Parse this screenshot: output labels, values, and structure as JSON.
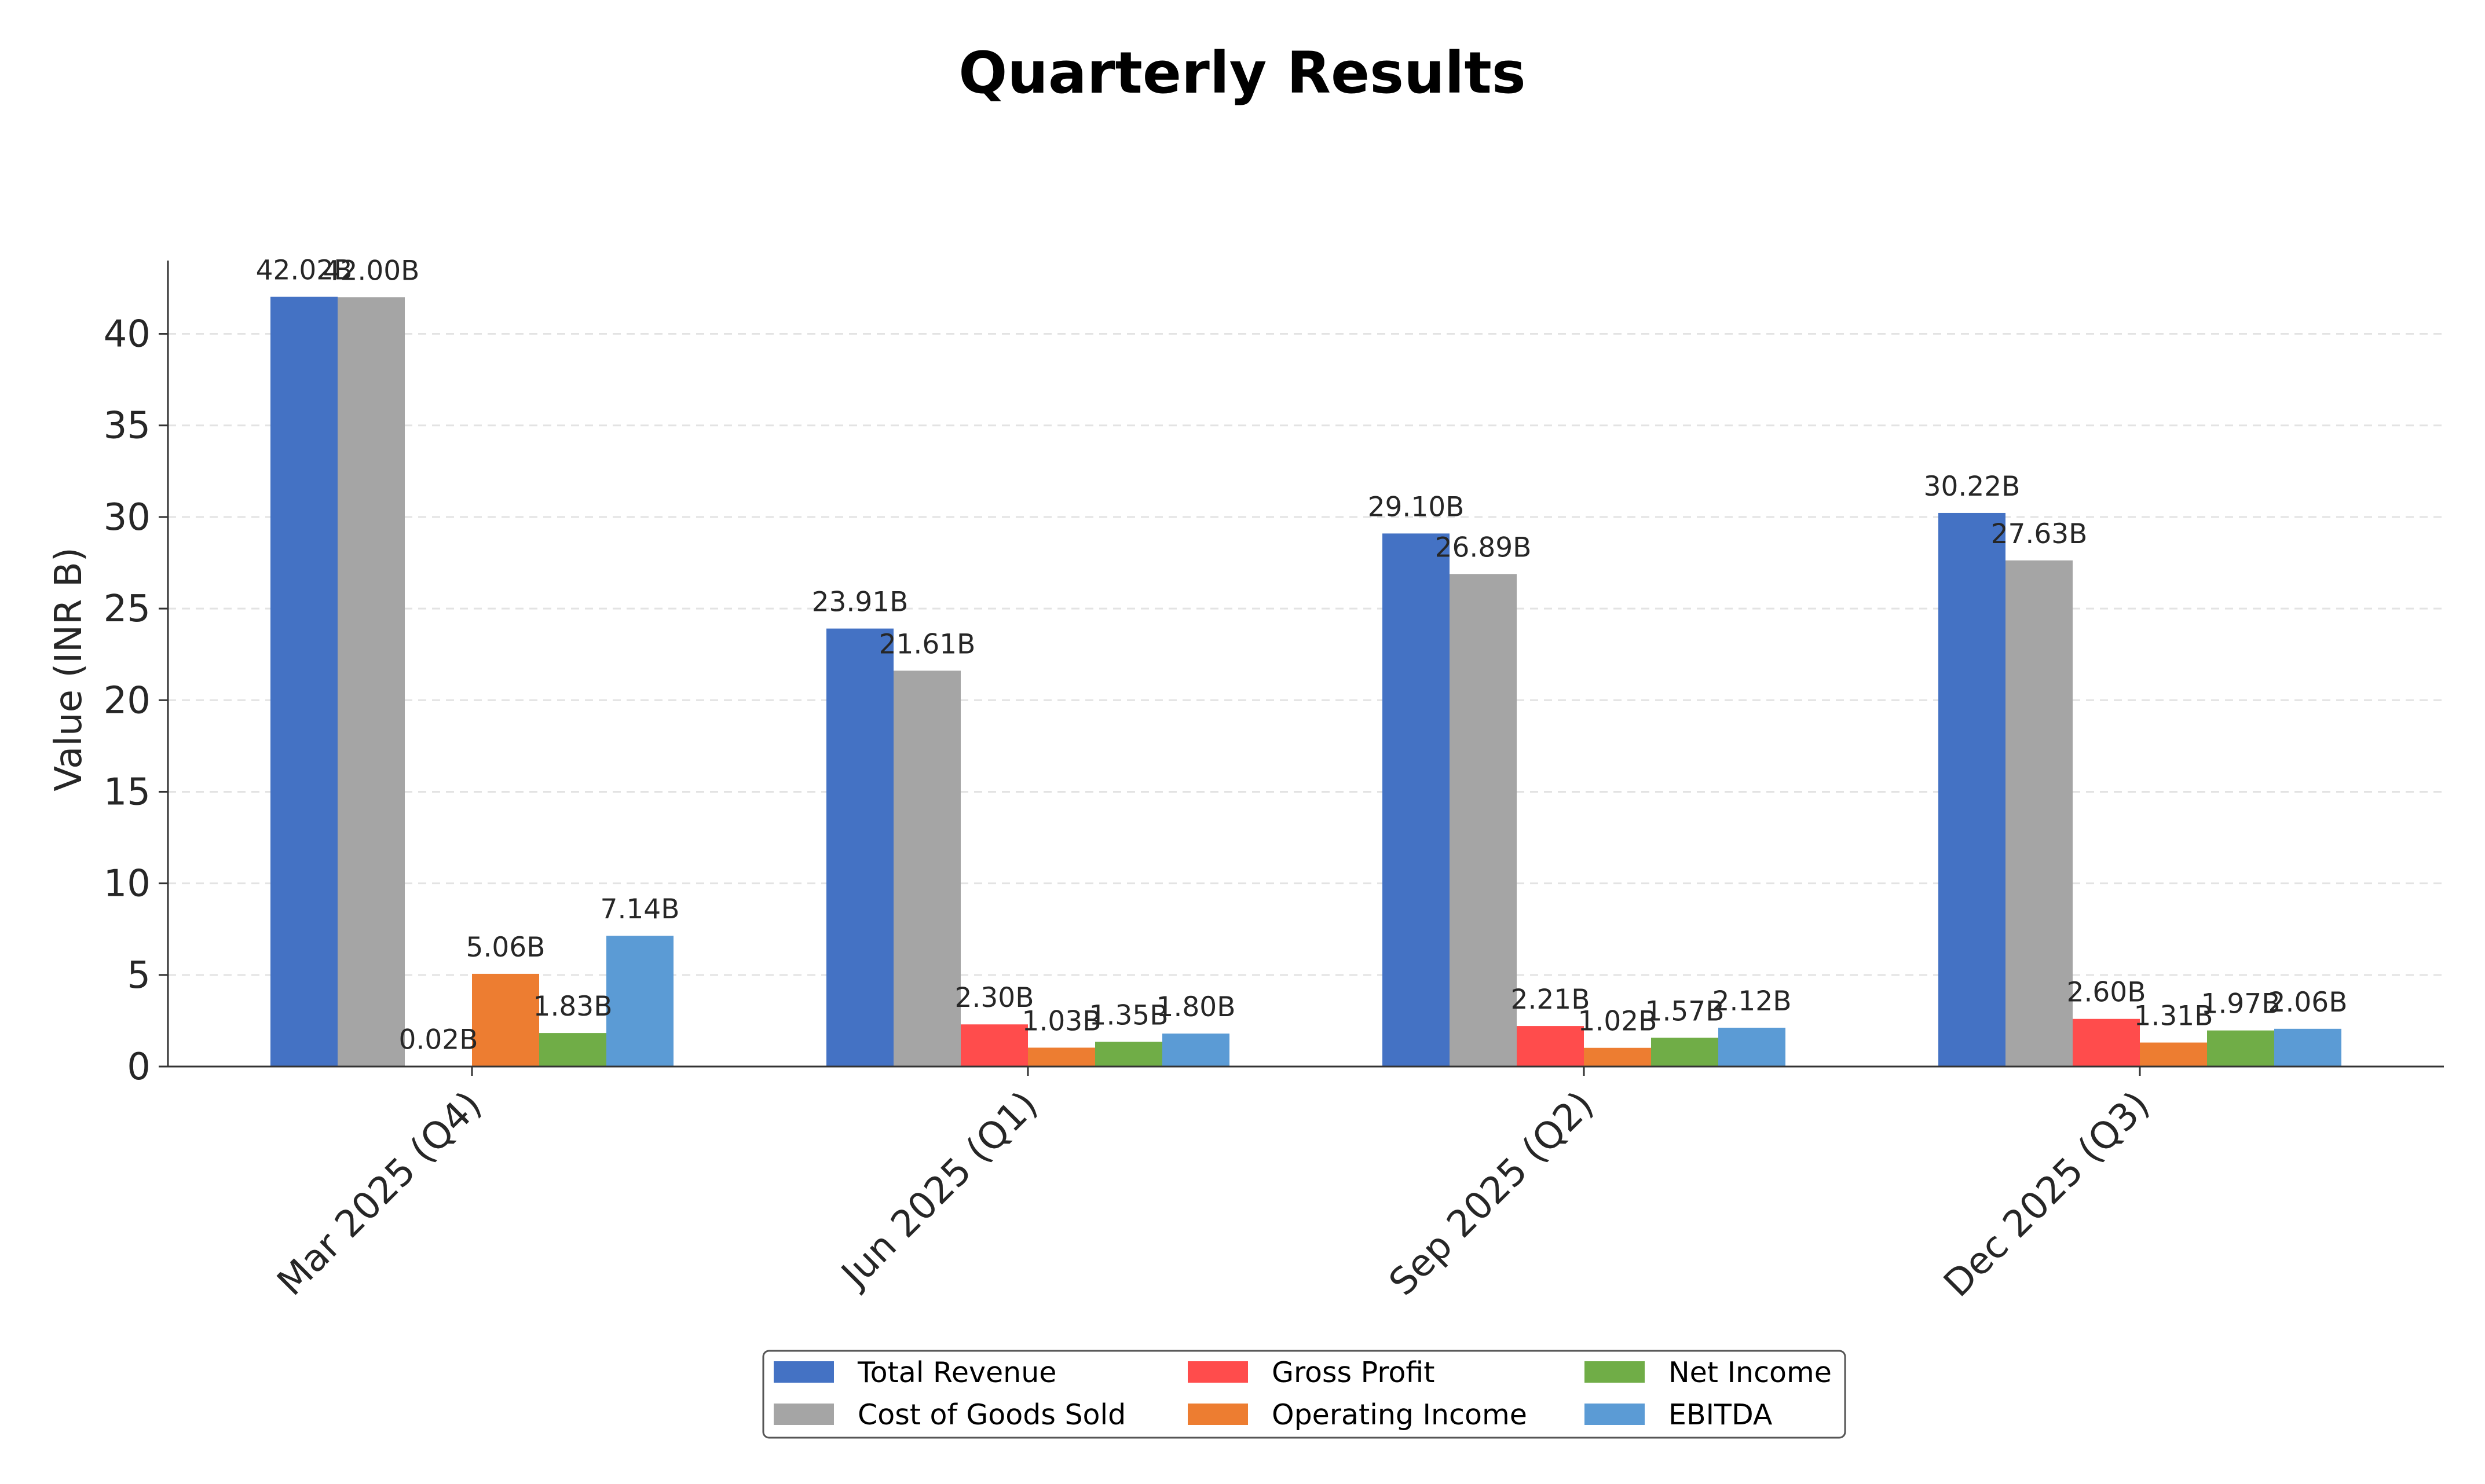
{
  "chart_data": {
    "type": "bar",
    "title": "Quarterly Results",
    "xlabel": "",
    "ylabel": "Value (INR B)",
    "ylim": [
      0,
      44
    ],
    "yticks": [
      "0",
      "5",
      "10",
      "15",
      "20",
      "25",
      "30",
      "35",
      "40"
    ],
    "grid": "horizontal dashed",
    "legend_position": "bottom-center",
    "categories": [
      "Mar 2025 (Q4)",
      "Jun 2025 (Q1)",
      "Sep 2025 (Q2)",
      "Dec 2025 (Q3)"
    ],
    "series": [
      {
        "name": "Total Revenue",
        "color": "#4472C4",
        "values": [
          42.02,
          23.91,
          29.1,
          30.22
        ],
        "labels": [
          "42.02B",
          "23.91B",
          "29.10B",
          "30.22B"
        ]
      },
      {
        "name": "Cost of Goods Sold",
        "color": "#A5A5A5",
        "values": [
          42.0,
          21.61,
          26.89,
          27.63
        ],
        "labels": [
          "42.00B",
          "21.61B",
          "26.89B",
          "27.63B"
        ]
      },
      {
        "name": "Gross Profit",
        "color": "#FF4C4C",
        "values": [
          0.02,
          2.3,
          2.21,
          2.6
        ],
        "labels": [
          "0.02B",
          "2.30B",
          "2.21B",
          "2.60B"
        ]
      },
      {
        "name": "Operating Income",
        "color": "#ED7D31",
        "values": [
          5.06,
          1.03,
          1.02,
          1.31
        ],
        "labels": [
          "5.06B",
          "1.03B",
          "1.02B",
          "1.31B"
        ]
      },
      {
        "name": "Net Income",
        "color": "#70AD47",
        "values": [
          1.83,
          1.35,
          1.57,
          1.97
        ],
        "labels": [
          "1.83B",
          "1.35B",
          "1.57B",
          "1.97B"
        ]
      },
      {
        "name": "EBITDA",
        "color": "#5B9BD5",
        "values": [
          7.14,
          1.8,
          2.12,
          2.06
        ],
        "labels": [
          "7.14B",
          "1.80B",
          "2.12B",
          "2.06B"
        ]
      }
    ]
  }
}
